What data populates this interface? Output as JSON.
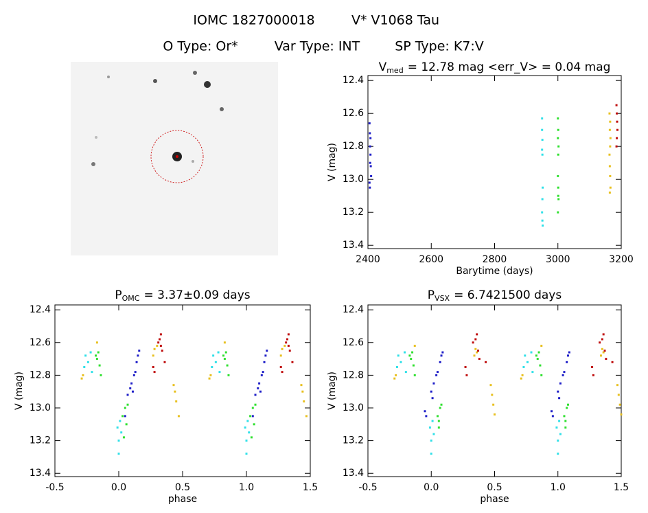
{
  "header": {
    "id": "IOMC 1827000018",
    "name": "V* V1068 Tau",
    "o_type": "O Type: Or*",
    "var_type": "Var Type: INT",
    "sp_type": "SP Type: K7:V"
  },
  "chart_data": [
    {
      "type": "scatter",
      "title": "V",
      "title_sub": "med",
      "title_rest": "= 12.78 mag <err_V> = 0.04 mag",
      "x_label": "Barytime (days)",
      "y_label": "V (mag)",
      "xlim": [
        2400,
        3200
      ],
      "xticks": [
        2400,
        2600,
        2800,
        3000,
        3200
      ],
      "ylim": [
        13.42,
        12.37
      ],
      "yticks": [
        12.4,
        12.6,
        12.8,
        {
          "value": 13,
          "label": "13.0"
        },
        13.2,
        13.4
      ],
      "series": [
        {
          "color": "#2020c8",
          "x": [
            2405,
            2406,
            2407,
            2408,
            2409,
            2410,
            2406,
            2408,
            2407,
            2405
          ],
          "values": [
            12.66,
            12.72,
            12.8,
            12.85,
            12.92,
            12.98,
            13.05,
            12.75,
            12.9,
            13.02
          ]
        },
        {
          "color": "#30e0e8",
          "x": [
            2950,
            2950,
            2951,
            2950,
            2951,
            2952,
            2951,
            2950,
            2952,
            2951
          ],
          "values": [
            12.63,
            12.7,
            12.76,
            12.82,
            12.85,
            13.05,
            13.12,
            13.2,
            13.28,
            13.25
          ]
        },
        {
          "color": "#30e030",
          "x": [
            3000,
            3001,
            3000,
            3002,
            3001,
            3000,
            3001,
            3002,
            3000,
            3001
          ],
          "values": [
            12.63,
            12.7,
            12.75,
            12.8,
            12.85,
            12.98,
            13.05,
            13.12,
            13.2,
            13.1
          ]
        },
        {
          "color": "#e8c020",
          "x": [
            3163,
            3165,
            3164,
            3166,
            3165,
            3163,
            3164,
            3165,
            3166,
            3164
          ],
          "values": [
            12.6,
            12.65,
            12.7,
            12.75,
            12.8,
            12.85,
            12.92,
            12.98,
            13.05,
            13.08
          ]
        },
        {
          "color": "#c01010",
          "x": [
            3185,
            3186,
            3187,
            3188,
            3186,
            3185
          ],
          "values": [
            12.55,
            12.6,
            12.65,
            12.7,
            12.75,
            12.8
          ]
        }
      ]
    },
    {
      "type": "scatter",
      "title": "P",
      "title_sub": "OMC",
      "title_rest": "= 3.37±0.09 days",
      "x_label": "phase",
      "y_label": "V (mag)",
      "xlim": [
        -0.5,
        1.5
      ],
      "xticks": [
        -0.5,
        {
          "value": 0,
          "label": "0.0"
        },
        0.5,
        {
          "value": 1,
          "label": "1.0"
        },
        1.5
      ],
      "ylim": [
        13.42,
        12.37
      ],
      "yticks": [
        12.4,
        12.6,
        12.8,
        {
          "value": 13,
          "label": "13.0"
        },
        13.2,
        13.4
      ],
      "series": [
        {
          "color": "#2020c8",
          "x": [
            0.05,
            0.07,
            0.09,
            0.1,
            0.12,
            0.13,
            0.14,
            0.15,
            0.16,
            0.11,
            1.05,
            1.07,
            1.09,
            1.1,
            1.12,
            1.13,
            1.14,
            1.15,
            1.16,
            1.11
          ],
          "values": [
            13.05,
            12.92,
            12.88,
            12.85,
            12.8,
            12.78,
            12.72,
            12.68,
            12.65,
            12.9,
            13.05,
            12.92,
            12.88,
            12.85,
            12.8,
            12.78,
            12.72,
            12.68,
            12.65,
            12.9
          ]
        },
        {
          "color": "#30e0e8",
          "x": [
            -0.27,
            -0.26,
            -0.24,
            -0.22,
            -0.21,
            -0.01,
            0,
            0,
            0.01,
            0.02,
            0.73,
            0.74,
            0.76,
            0.78,
            0.79,
            0.99,
            1,
            1,
            1.01,
            1.02
          ],
          "values": [
            12.75,
            12.68,
            12.72,
            12.66,
            12.78,
            13.12,
            13.2,
            13.28,
            13.08,
            13.15,
            12.75,
            12.68,
            12.72,
            12.66,
            12.78,
            13.12,
            13.2,
            13.28,
            13.08,
            13.15
          ]
        },
        {
          "color": "#30e030",
          "x": [
            -0.18,
            -0.17,
            -0.16,
            -0.15,
            -0.14,
            0.03,
            0.04,
            0.05,
            0.06,
            0.07,
            0.82,
            0.83,
            0.84,
            0.85,
            0.86,
            1.03,
            1.04,
            1.05,
            1.06,
            1.07
          ],
          "values": [
            12.68,
            12.7,
            12.66,
            12.74,
            12.8,
            13.05,
            13.18,
            13,
            13.1,
            12.98,
            12.68,
            12.7,
            12.66,
            12.74,
            12.8,
            13.05,
            13.18,
            13,
            13.1,
            12.98
          ]
        },
        {
          "color": "#e8c020",
          "x": [
            -0.29,
            -0.28,
            -0.17,
            0.27,
            0.28,
            0.3,
            0.43,
            0.44,
            0.45,
            0.47,
            0.71,
            0.72,
            0.83,
            1.27,
            1.28,
            1.3,
            1.43,
            1.44,
            1.45,
            1.47
          ],
          "values": [
            12.82,
            12.8,
            12.6,
            12.68,
            12.64,
            12.62,
            12.86,
            12.9,
            12.96,
            13.05,
            12.82,
            12.8,
            12.6,
            12.68,
            12.64,
            12.62,
            12.86,
            12.9,
            12.96,
            13.05
          ]
        },
        {
          "color": "#c01010",
          "x": [
            0.31,
            0.32,
            0.33,
            0.34,
            0.36,
            0.27,
            0.28,
            0.33,
            1.31,
            1.32,
            1.33,
            1.34,
            1.36,
            1.27,
            1.28,
            1.33
          ],
          "values": [
            12.6,
            12.58,
            12.55,
            12.65,
            12.72,
            12.75,
            12.78,
            12.62,
            12.6,
            12.58,
            12.55,
            12.65,
            12.72,
            12.75,
            12.78,
            12.62
          ]
        }
      ]
    },
    {
      "type": "scatter",
      "title": "P",
      "title_sub": "VSX",
      "title_rest": "= 6.7421500 days",
      "x_label": "phase",
      "y_label": "V (mag)",
      "xlim": [
        -0.5,
        1.5
      ],
      "xticks": [
        -0.5,
        {
          "value": 0,
          "label": "0.0"
        },
        0.5,
        {
          "value": 1,
          "label": "1.0"
        },
        1.5
      ],
      "ylim": [
        13.42,
        12.37
      ],
      "yticks": [
        12.4,
        12.6,
        12.8,
        {
          "value": 13,
          "label": "13.0"
        },
        13.2,
        13.4
      ],
      "series": [
        {
          "color": "#2020c8",
          "x": [
            -0.05,
            -0.04,
            0,
            0.02,
            0.04,
            0.05,
            0.07,
            0.08,
            0.09,
            0.01,
            0.95,
            0.96,
            1,
            1.02,
            1.04,
            1.05,
            1.07,
            1.08,
            1.09,
            1.01
          ],
          "values": [
            13.02,
            13.05,
            12.9,
            12.85,
            12.8,
            12.78,
            12.72,
            12.68,
            12.66,
            12.94,
            13.02,
            13.05,
            12.9,
            12.85,
            12.8,
            12.78,
            12.72,
            12.68,
            12.66,
            12.94
          ]
        },
        {
          "color": "#30e0e8",
          "x": [
            -0.27,
            -0.26,
            -0.24,
            -0.21,
            -0.2,
            -0.01,
            0,
            0,
            0.01,
            0.02,
            0.73,
            0.74,
            0.76,
            0.79,
            0.8,
            0.99,
            1,
            1,
            1.01,
            1.02
          ],
          "values": [
            12.75,
            12.68,
            12.72,
            12.66,
            12.78,
            13.12,
            13.2,
            13.28,
            13.08,
            13.16,
            12.75,
            12.68,
            12.72,
            12.66,
            12.78,
            13.12,
            13.2,
            13.28,
            13.08,
            13.16
          ]
        },
        {
          "color": "#30e030",
          "x": [
            -0.17,
            -0.16,
            -0.15,
            -0.14,
            -0.13,
            0.05,
            0.06,
            0.07,
            0.08,
            0.06,
            0.83,
            0.84,
            0.85,
            0.86,
            0.87,
            1.05,
            1.06,
            1.07,
            1.08,
            1.06
          ],
          "values": [
            12.68,
            12.7,
            12.66,
            12.74,
            12.8,
            13.05,
            13.12,
            13,
            12.98,
            13.08,
            12.68,
            12.7,
            12.66,
            12.74,
            12.8,
            13.05,
            13.12,
            13,
            12.98,
            13.08
          ]
        },
        {
          "color": "#e8c020",
          "x": [
            -0.29,
            -0.28,
            -0.13,
            0.34,
            0.35,
            0.36,
            0.47,
            0.48,
            0.49,
            0.5,
            0.71,
            0.72,
            0.87,
            1.34,
            1.35,
            1.36,
            1.47,
            1.48,
            1.49,
            1.5
          ],
          "values": [
            12.82,
            12.8,
            12.62,
            12.68,
            12.64,
            12.66,
            12.86,
            12.92,
            12.98,
            13.04,
            12.82,
            12.8,
            12.62,
            12.68,
            12.64,
            12.66,
            12.86,
            12.92,
            12.98,
            13.04
          ]
        },
        {
          "color": "#c01010",
          "x": [
            0.33,
            0.35,
            0.36,
            0.37,
            0.38,
            0.27,
            0.28,
            0.43,
            1.33,
            1.35,
            1.36,
            1.37,
            1.38,
            1.27,
            1.28,
            1.43
          ],
          "values": [
            12.6,
            12.58,
            12.55,
            12.65,
            12.7,
            12.75,
            12.8,
            12.72,
            12.6,
            12.58,
            12.55,
            12.65,
            12.7,
            12.75,
            12.8,
            12.72
          ]
        }
      ]
    }
  ]
}
